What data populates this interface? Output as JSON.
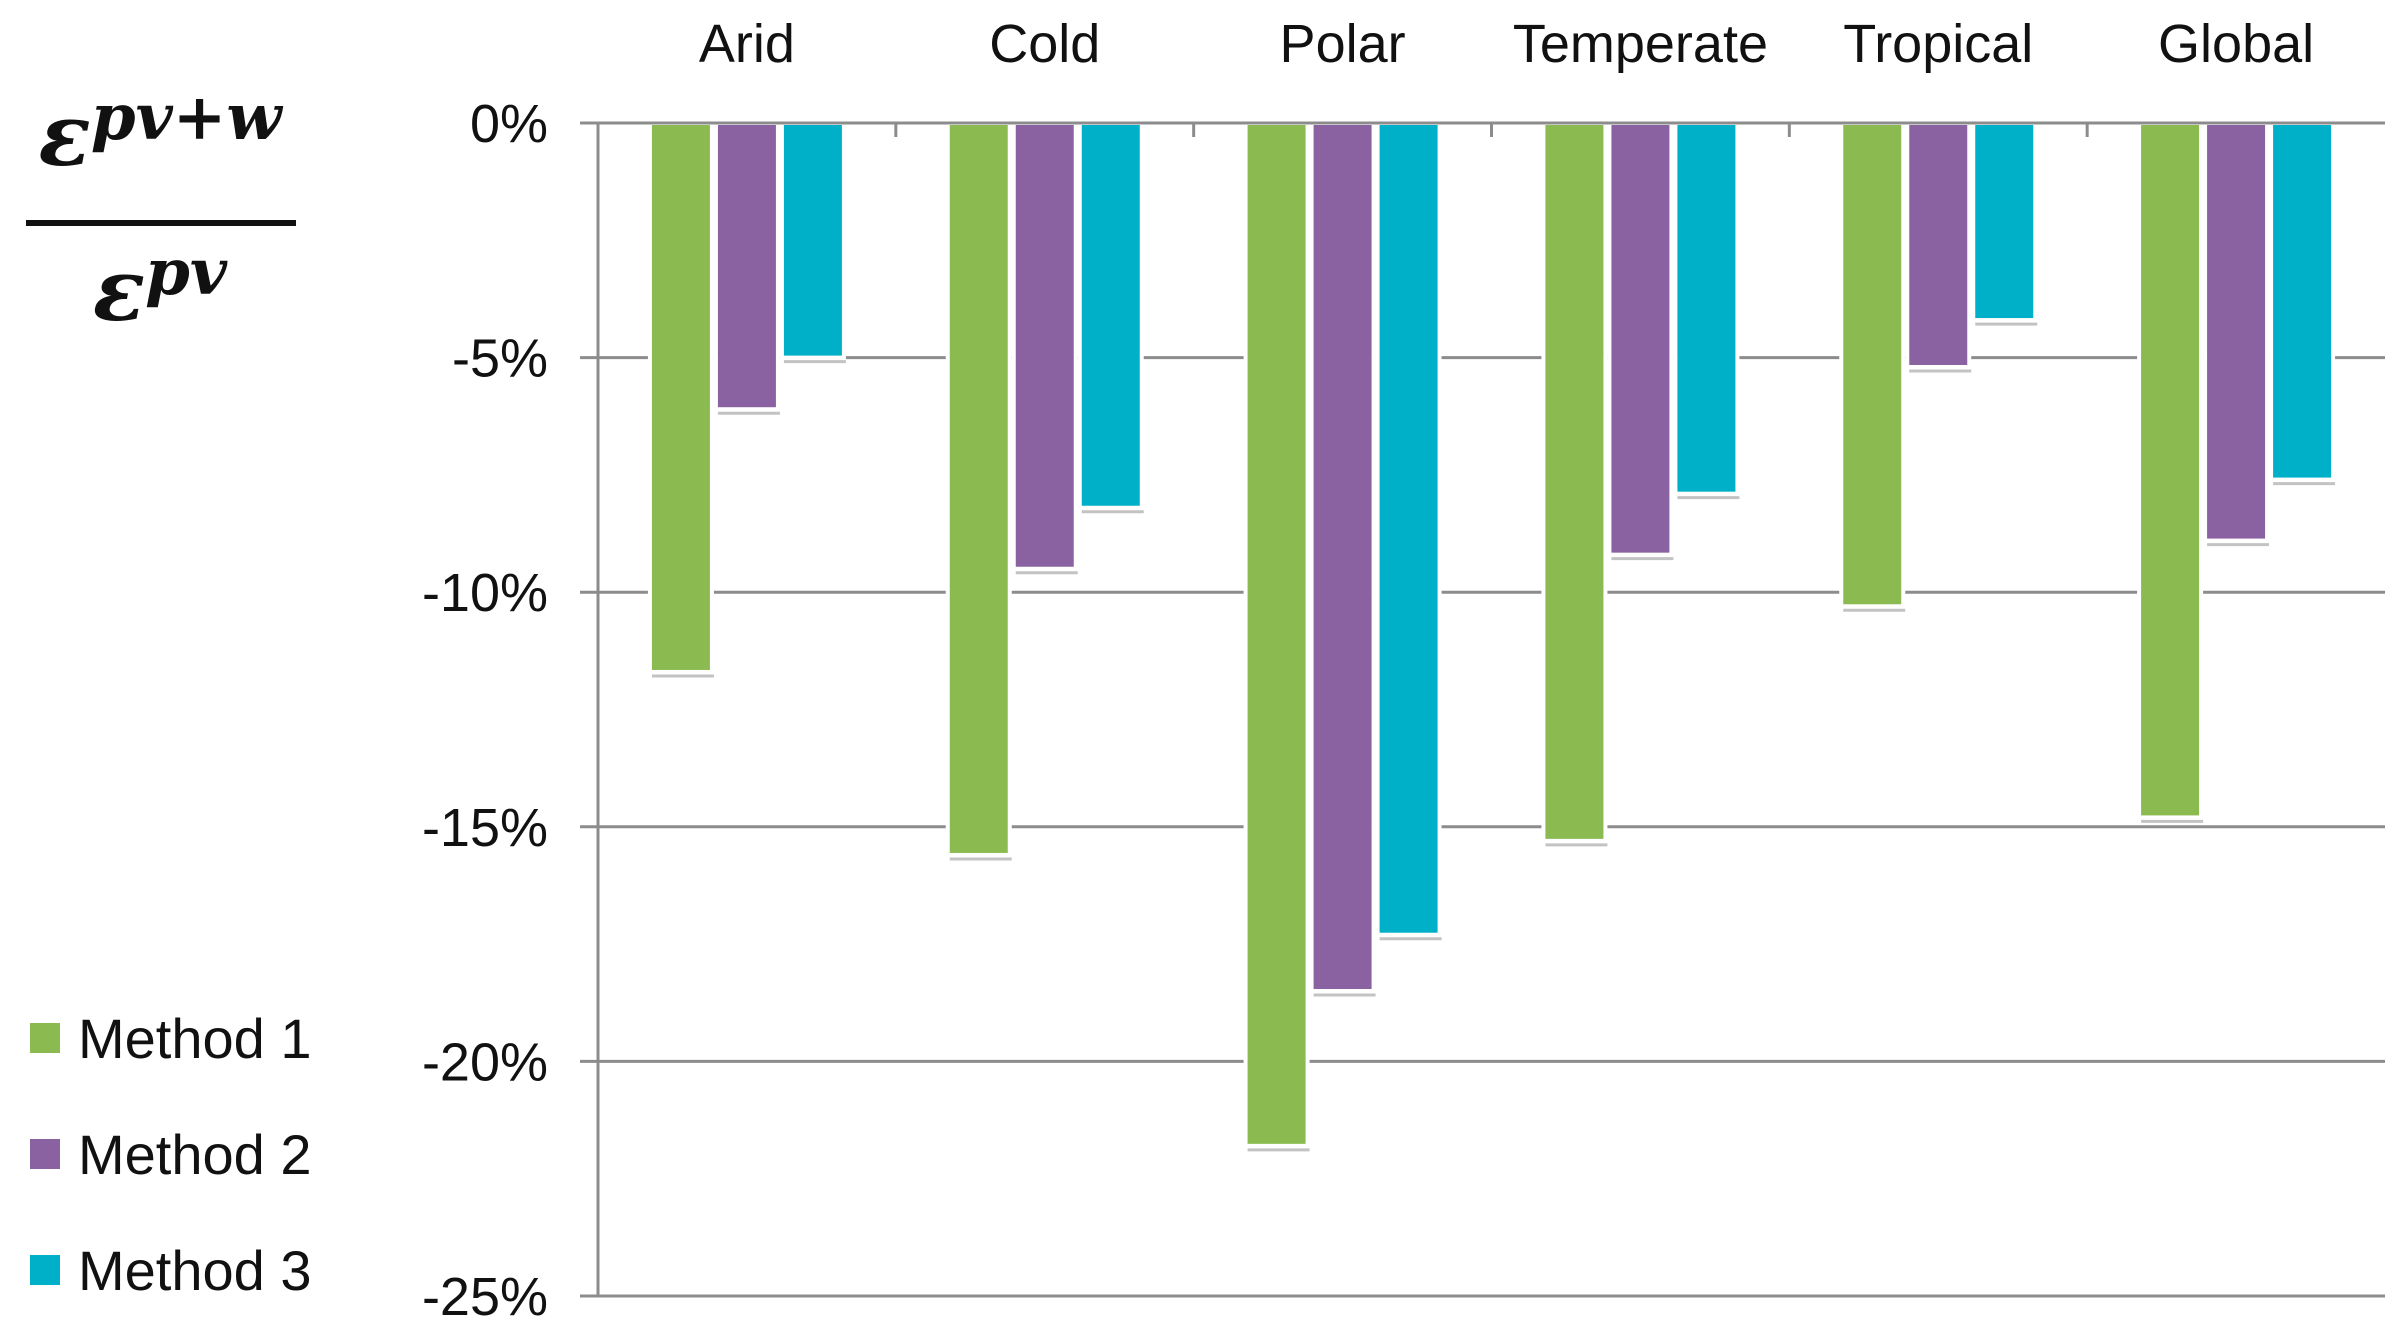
{
  "y_axis_label": {
    "numerator_base": "ε",
    "numerator_sup": "pv+w",
    "denominator_base": "ε",
    "denominator_sup": "pv"
  },
  "chart_data": {
    "type": "bar",
    "title": "",
    "xlabel": "",
    "ylabel": "ε^(pv+w) / ε^(pv)",
    "categories": [
      "Arid",
      "Cold",
      "Polar",
      "Temperate",
      "Tropical",
      "Global"
    ],
    "series": [
      {
        "name": "Method 1",
        "color": "#8BBB50",
        "values": [
          -11.7,
          -15.6,
          -21.8,
          -15.3,
          -10.3,
          -14.8
        ]
      },
      {
        "name": "Method 2",
        "color": "#8A62A2",
        "values": [
          -6.1,
          -9.5,
          -18.5,
          -9.2,
          -5.2,
          -8.9
        ]
      },
      {
        "name": "Method 3",
        "color": "#00AFC8",
        "values": [
          -5.0,
          -8.2,
          -17.3,
          -7.9,
          -4.2,
          -7.6
        ]
      }
    ],
    "ylim": [
      -25,
      0
    ],
    "yticks": [
      0,
      -5,
      -10,
      -15,
      -20,
      -25
    ],
    "ytick_labels": [
      "0%",
      "-5%",
      "-10%",
      "-15%",
      "-20%",
      "-25%"
    ],
    "grid": true,
    "legend_position": "bottom-left",
    "x_axis_position": "top"
  }
}
